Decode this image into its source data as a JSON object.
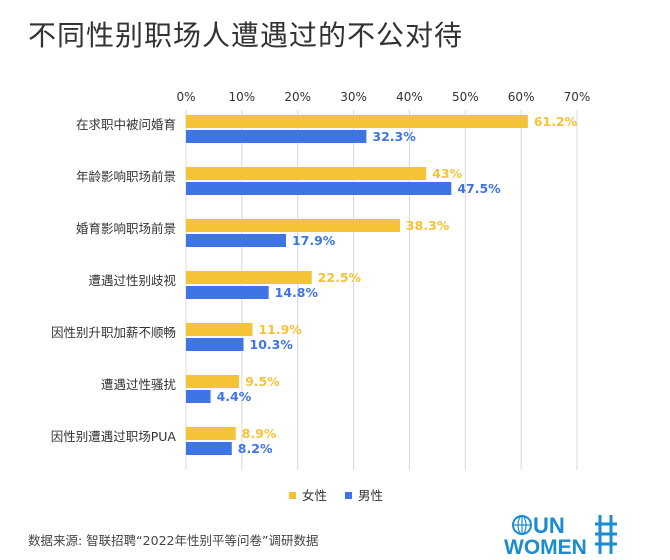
{
  "title": "不同性别职场人遭遇过的不公对待",
  "source": "数据来源: 智联招聘“2022年性别平等问卷”调研数据",
  "logo": {
    "line1": "UN",
    "line2": "WOMEN"
  },
  "colors": {
    "female": "#f5c336",
    "male": "#3f74e6",
    "logo_blue": "#1a8ccf",
    "grid": "#d8d8d8"
  },
  "chart_data": {
    "type": "bar",
    "orientation": "horizontal",
    "xlim": [
      0,
      70
    ],
    "x_ticks": [
      "0%",
      "10%",
      "20%",
      "30%",
      "40%",
      "50%",
      "60%",
      "70%"
    ],
    "x_tick_values": [
      0,
      10,
      20,
      30,
      40,
      50,
      60,
      70
    ],
    "grid": true,
    "legend_position": "bottom",
    "categories": [
      "在求职中被问婚育",
      "年龄影响职场前景",
      "婚育影响职场前景",
      "遭遇过性别歧视",
      "因性别升职加薪不顺畅",
      "遭遇过性骚扰",
      "因性别遭遇过职场PUA"
    ],
    "series": [
      {
        "name": "女性",
        "values": [
          61.2,
          43,
          38.3,
          22.5,
          11.9,
          9.5,
          8.9
        ],
        "labels": [
          "61.2%",
          "43%",
          "38.3%",
          "22.5%",
          "11.9%",
          "9.5%",
          "8.9%"
        ]
      },
      {
        "name": "男性",
        "values": [
          32.3,
          47.5,
          17.9,
          14.8,
          10.3,
          4.4,
          8.2
        ],
        "labels": [
          "32.3%",
          "47.5%",
          "17.9%",
          "14.8%",
          "10.3%",
          "4.4%",
          "8.2%"
        ]
      }
    ]
  }
}
